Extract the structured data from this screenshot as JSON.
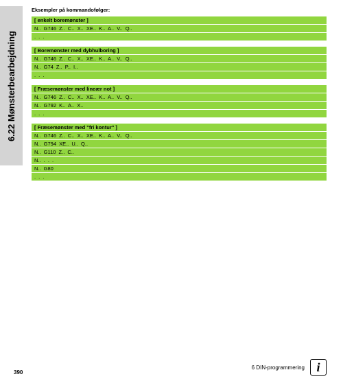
{
  "sideTab": "6.22 Mønsterbearbejdning",
  "intro": "Eksempler på kommandofølger:",
  "sections": [
    {
      "header": "[ enkelt boremønster ]",
      "lines": [
        "N.. G746 Z.. C.. X.. XE.. K.. A.. V.. Q..",
        ". . ."
      ]
    },
    {
      "header": "[ Boremønster med dybhulboring ]",
      "lines": [
        "N.. G746 Z.. C.. X.. XE.. K.. A.. V.. Q..",
        "N.. G74 Z.. P.. I..",
        ". . ."
      ]
    },
    {
      "header": "[ Fræsemønster med lineær not ]",
      "lines": [
        "N.. G746 Z.. C.. X.. XE.. K.. A.. V.. Q..",
        "N.. G792 K.. A.. X..",
        ". . ."
      ]
    },
    {
      "header": "[ Fræsemønster med \"fri kontur\" ]",
      "lines": [
        "N.. G746 Z.. C.. X.. XE.. K.. A.. V.. Q..",
        "N.. G794 XE.. U.. Q..",
        "N.. G110 Z.. C..",
        "N.. . . .",
        "N.. G80",
        ". . ."
      ]
    }
  ],
  "footer": {
    "pageNum": "390",
    "chapter": "6 DIN-programmering"
  },
  "colors": {
    "greenBg": "#91d63f",
    "grayTab": "#d4d4d4"
  }
}
